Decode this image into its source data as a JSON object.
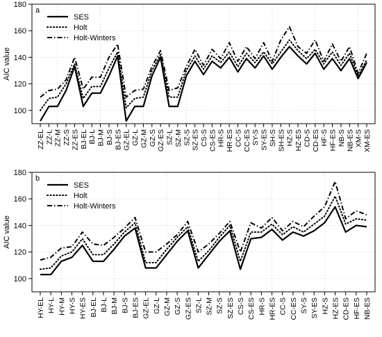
{
  "chart_data": [
    {
      "type": "line",
      "panel_label": "a",
      "title": "",
      "xlabel": "",
      "ylabel": "AIC value",
      "ylim": [
        90,
        180
      ],
      "yticks": [
        100,
        120,
        140,
        160,
        180
      ],
      "grid": true,
      "legend": "top-left",
      "categories": [
        "ZZ-EL",
        "ZZ-L",
        "ZZ-M",
        "ZZ-S",
        "ZZ-ES",
        "BJ-EL",
        "BJ-L",
        "BJ-M",
        "BJ-S",
        "BJ-ES",
        "GZ-EL",
        "GZ-L",
        "GZ-M",
        "GZ-S",
        "GZ-ES",
        "SZ-L",
        "SZ-M",
        "SZ-S",
        "SZ-ES",
        "CS-S",
        "CS-ES",
        "HR-S",
        "HR-ES",
        "CC-S",
        "CC-ES",
        "SY-S",
        "SY-ES",
        "SH-S",
        "SH-ES",
        "HZ-S",
        "HZ-ES",
        "CD-S",
        "CD-ES",
        "HF-S",
        "HF-ES",
        "NB-S",
        "NB-ES",
        "XM-S",
        "XM-ES"
      ],
      "series": [
        {
          "name": "SES",
          "style": "solid",
          "values": [
            92,
            103,
            103,
            115,
            133,
            103,
            113,
            113,
            126,
            141,
            92,
            103,
            103,
            126,
            140,
            103,
            103,
            126,
            137,
            127,
            137,
            132,
            140,
            129,
            139,
            132,
            141,
            131,
            140,
            148,
            141,
            135,
            143,
            131,
            139,
            130,
            139,
            124,
            136
          ]
        },
        {
          "name": "Holt",
          "style": "dotted",
          "values": [
            100,
            109,
            110,
            120,
            135,
            109,
            118,
            118,
            132,
            144,
            102,
            109,
            110,
            130,
            142,
            110,
            110,
            130,
            141,
            131,
            141,
            136,
            144,
            133,
            143,
            136,
            144,
            135,
            144,
            153,
            145,
            139,
            146,
            135,
            144,
            134,
            143,
            126,
            138
          ]
        },
        {
          "name": "Holt-Winters",
          "style": "dashdot",
          "values": [
            110,
            115,
            116,
            123,
            140,
            116,
            125,
            125,
            140,
            150,
            110,
            115,
            116,
            133,
            145,
            115,
            117,
            133,
            146,
            134,
            146,
            139,
            151,
            137,
            148,
            139,
            151,
            137,
            153,
            163,
            148,
            143,
            153,
            137,
            150,
            137,
            148,
            128,
            143
          ]
        }
      ]
    },
    {
      "type": "line",
      "panel_label": "b",
      "title": "",
      "xlabel": "",
      "ylabel": "AIC value",
      "ylim": [
        90,
        180
      ],
      "yticks": [
        100,
        120,
        140,
        160,
        180
      ],
      "grid": true,
      "legend": "top-left",
      "categories": [
        "HY-EL",
        "HY-L",
        "HY-M",
        "HY-S",
        "HY-ES",
        "BJ-EL",
        "BJ-L",
        "BJ-M",
        "BJ-S",
        "BJ-ES",
        "GZ-EL",
        "GZ-L",
        "GZ-M",
        "GZ-S",
        "GZ-ES",
        "SZ-L",
        "SZ-M",
        "SZ-S",
        "SZ-ES",
        "CS-S",
        "CS-ES",
        "HR-S",
        "HR-ES",
        "CC-S",
        "CC-ES",
        "SY-S",
        "SY-ES",
        "HZ-S",
        "HZ-ES",
        "CD-ES",
        "HF-ES",
        "NB-ES"
      ],
      "series": [
        {
          "name": "SES",
          "style": "solid",
          "values": [
            103,
            103,
            113,
            116,
            125,
            113,
            113,
            122,
            132,
            138,
            108,
            108,
            118,
            128,
            136,
            108,
            118,
            128,
            136,
            107,
            130,
            131,
            137,
            129,
            135,
            132,
            136,
            142,
            154,
            135,
            140,
            139
          ]
        },
        {
          "name": "Holt",
          "style": "dotted",
          "values": [
            107,
            108,
            117,
            120,
            130,
            118,
            118,
            126,
            135,
            142,
            112,
            112,
            122,
            131,
            139,
            113,
            121,
            131,
            140,
            113,
            135,
            135,
            141,
            133,
            139,
            135,
            141,
            147,
            162,
            141,
            145,
            144
          ]
        },
        {
          "name": "Holt-Winters",
          "style": "dashdot",
          "values": [
            114,
            116,
            123,
            124,
            135,
            126,
            125,
            131,
            138,
            146,
            120,
            120,
            126,
            133,
            143,
            120,
            126,
            134,
            143,
            120,
            142,
            138,
            146,
            136,
            143,
            139,
            147,
            154,
            173,
            145,
            151,
            148
          ]
        }
      ]
    }
  ]
}
